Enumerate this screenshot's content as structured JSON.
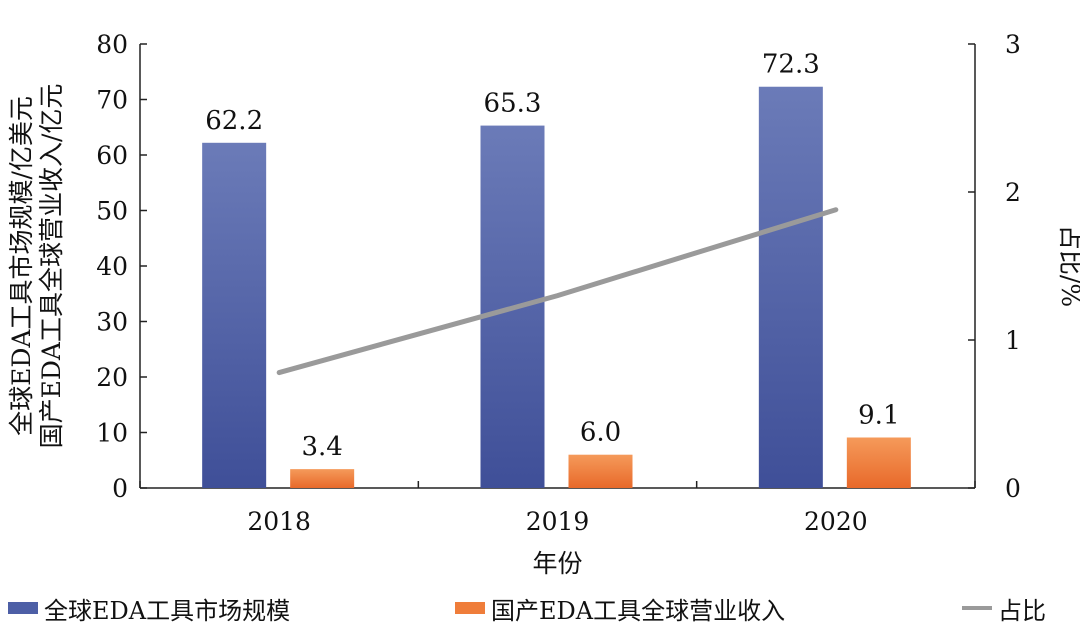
{
  "chart_data": {
    "type": "bar",
    "categories": [
      "2018",
      "2019",
      "2020"
    ],
    "series": [
      {
        "name": "全球EDA工具市场规模",
        "axis": "left",
        "kind": "bar",
        "values": [
          62.2,
          65.3,
          72.3
        ],
        "labels": [
          "62.2",
          "65.3",
          "72.3"
        ],
        "color": "#4d5fa6"
      },
      {
        "name": "国产EDA工具全球营业收入",
        "axis": "left",
        "kind": "bar",
        "values": [
          3.4,
          6.0,
          9.1
        ],
        "labels": [
          "3.4",
          "6.0",
          "9.1"
        ],
        "color": "#ef7d3a"
      },
      {
        "name": "占比",
        "axis": "right",
        "kind": "line",
        "values": [
          0.78,
          1.3,
          1.88
        ],
        "color": "#9a9a9a"
      }
    ],
    "xlabel": "年份",
    "ylabel_left_line1": "全球EDA工具市场规模/亿美元",
    "ylabel_left_line2": "国产EDA工具全球营业收入/亿元",
    "ylabel_right": "占比/%",
    "ylim_left": [
      0,
      80
    ],
    "yticks_left": [
      "0",
      "10",
      "20",
      "30",
      "40",
      "50",
      "60",
      "70",
      "80"
    ],
    "ylim_right": [
      0,
      3
    ],
    "yticks_right": [
      "0",
      "1",
      "2",
      "3"
    ],
    "legend_position": "bottom"
  }
}
